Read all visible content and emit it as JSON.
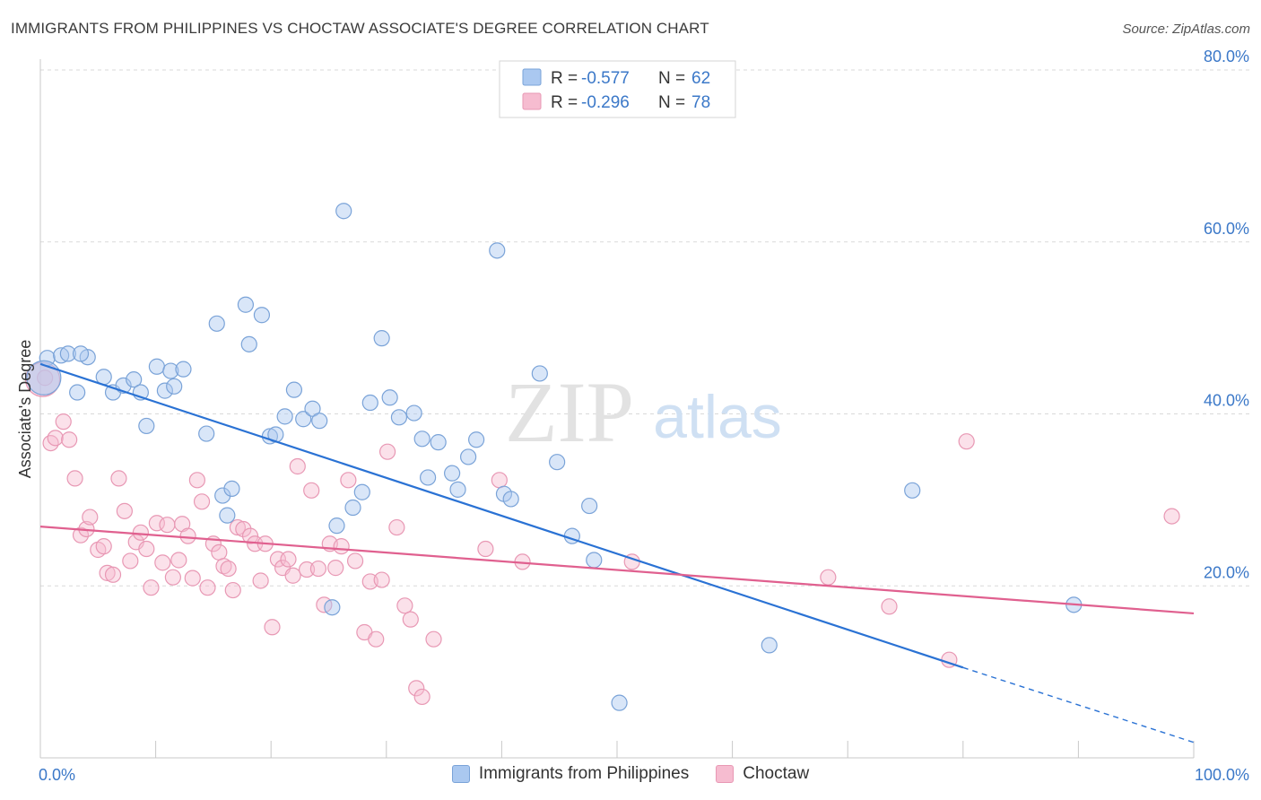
{
  "title": "IMMIGRANTS FROM PHILIPPINES VS CHOCTAW ASSOCIATE'S DEGREE CORRELATION CHART",
  "source": "Source: ZipAtlas.com",
  "watermark": {
    "zip": "ZIP",
    "atlas": "atlas"
  },
  "colors": {
    "blue_fill": "#aac8f0",
    "blue_stroke": "#7aa3d8",
    "blue_line": "#2a72d4",
    "pink_fill": "#f6bcd0",
    "pink_stroke": "#e898b4",
    "pink_line": "#e0608f",
    "tick_label": "#3b78c8",
    "grid": "#d9d9d9"
  },
  "chart_data": {
    "type": "scatter",
    "title": "IMMIGRANTS FROM PHILIPPINES VS CHOCTAW ASSOCIATE'S DEGREE CORRELATION CHART",
    "xlabel": "",
    "ylabel": "Associate's Degree",
    "xlim": [
      0,
      100
    ],
    "ylim": [
      0,
      80
    ],
    "x_tick_labels": {
      "left": "0.0%",
      "right": "100.0%"
    },
    "y_ticks": [
      {
        "value": 20,
        "label": "20.0%"
      },
      {
        "value": 40,
        "label": "40.0%"
      },
      {
        "value": 60,
        "label": "60.0%"
      },
      {
        "value": 80,
        "label": "80.0%"
      }
    ],
    "grid": true,
    "legend_stats": [
      {
        "r_label": "R = ",
        "r_value": "-0.577",
        "n_label": "N = ",
        "n_value": "62"
      },
      {
        "r_label": "R = ",
        "r_value": "-0.296",
        "n_label": "N = ",
        "n_value": "78"
      }
    ],
    "series": [
      {
        "name": "Immigrants from Philippines",
        "color": "#aac8f0",
        "trend": {
          "x": [
            0,
            80,
            100
          ],
          "y": [
            45.8,
            10.5,
            1.8
          ],
          "solid_until": 80
        },
        "points": [
          [
            0.6,
            46.5
          ],
          [
            1.8,
            46.8
          ],
          [
            2.4,
            47
          ],
          [
            3.2,
            42.5
          ],
          [
            4.1,
            46.6
          ],
          [
            3.5,
            47
          ],
          [
            5.5,
            44.3
          ],
          [
            6.3,
            42.5
          ],
          [
            7.2,
            43.3
          ],
          [
            8.1,
            44
          ],
          [
            8.7,
            42.5
          ],
          [
            9.2,
            38.6
          ],
          [
            10.1,
            45.5
          ],
          [
            10.8,
            42.7
          ],
          [
            11.3,
            45
          ],
          [
            11.6,
            43.2
          ],
          [
            12.4,
            45.2
          ],
          [
            14.4,
            37.7
          ],
          [
            15.3,
            50.5
          ],
          [
            15.8,
            30.5
          ],
          [
            16.2,
            28.2
          ],
          [
            16.6,
            31.3
          ],
          [
            17.8,
            52.7
          ],
          [
            18.1,
            48.1
          ],
          [
            19.2,
            51.5
          ],
          [
            19.9,
            37.4
          ],
          [
            20.4,
            37.6
          ],
          [
            21.2,
            39.7
          ],
          [
            22.0,
            42.8
          ],
          [
            22.8,
            39.4
          ],
          [
            23.6,
            40.6
          ],
          [
            24.2,
            39.2
          ],
          [
            25.3,
            17.5
          ],
          [
            25.7,
            27.0
          ],
          [
            26.3,
            63.6
          ],
          [
            27.1,
            29.1
          ],
          [
            27.9,
            30.9
          ],
          [
            28.6,
            41.3
          ],
          [
            29.6,
            48.8
          ],
          [
            30.3,
            41.9
          ],
          [
            31.1,
            39.6
          ],
          [
            32.4,
            40.1
          ],
          [
            33.1,
            37.1
          ],
          [
            33.6,
            32.6
          ],
          [
            34.5,
            36.7
          ],
          [
            35.7,
            33.1
          ],
          [
            36.2,
            31.2
          ],
          [
            37.1,
            35.0
          ],
          [
            37.8,
            37.0
          ],
          [
            39.6,
            59.0
          ],
          [
            40.2,
            30.7
          ],
          [
            40.8,
            30.1
          ],
          [
            43.3,
            44.7
          ],
          [
            44.8,
            34.4
          ],
          [
            46.1,
            25.8
          ],
          [
            47.6,
            29.3
          ],
          [
            48.0,
            23.0
          ],
          [
            50.2,
            6.4
          ],
          [
            63.2,
            13.1
          ],
          [
            75.6,
            31.1
          ],
          [
            89.6,
            17.8
          ],
          [
            0.3,
            44.2
          ]
        ]
      },
      {
        "name": "Choctaw",
        "color": "#f6bcd0",
        "trend": {
          "x": [
            0,
            100
          ],
          "y": [
            26.9,
            16.8
          ],
          "solid_until": 100
        },
        "points": [
          [
            0.4,
            44.2
          ],
          [
            0.9,
            36.6
          ],
          [
            1.3,
            37.2
          ],
          [
            2.0,
            39.1
          ],
          [
            2.5,
            37.0
          ],
          [
            3.0,
            32.5
          ],
          [
            3.5,
            25.9
          ],
          [
            4.0,
            26.6
          ],
          [
            4.3,
            28.0
          ],
          [
            5.0,
            24.2
          ],
          [
            5.5,
            24.6
          ],
          [
            5.8,
            21.5
          ],
          [
            6.3,
            21.3
          ],
          [
            6.8,
            32.5
          ],
          [
            7.3,
            28.7
          ],
          [
            7.8,
            22.9
          ],
          [
            8.3,
            25.1
          ],
          [
            8.7,
            26.2
          ],
          [
            9.2,
            24.3
          ],
          [
            9.6,
            19.8
          ],
          [
            10.1,
            27.3
          ],
          [
            10.6,
            22.7
          ],
          [
            11.0,
            27.1
          ],
          [
            11.5,
            21.0
          ],
          [
            12.0,
            23.0
          ],
          [
            12.3,
            27.2
          ],
          [
            12.8,
            25.8
          ],
          [
            13.2,
            20.9
          ],
          [
            13.6,
            32.3
          ],
          [
            14.0,
            29.8
          ],
          [
            14.5,
            19.8
          ],
          [
            15.0,
            24.9
          ],
          [
            15.5,
            23.9
          ],
          [
            15.9,
            22.3
          ],
          [
            16.3,
            22.0
          ],
          [
            16.7,
            19.5
          ],
          [
            17.1,
            26.8
          ],
          [
            17.6,
            26.6
          ],
          [
            18.2,
            25.8
          ],
          [
            18.6,
            24.9
          ],
          [
            19.1,
            20.6
          ],
          [
            19.5,
            24.9
          ],
          [
            20.1,
            15.2
          ],
          [
            20.6,
            23.1
          ],
          [
            21.0,
            22.1
          ],
          [
            21.5,
            23.1
          ],
          [
            21.9,
            21.2
          ],
          [
            22.3,
            33.9
          ],
          [
            23.1,
            21.9
          ],
          [
            23.5,
            31.1
          ],
          [
            24.1,
            22.0
          ],
          [
            24.6,
            17.8
          ],
          [
            25.1,
            24.9
          ],
          [
            25.6,
            22.1
          ],
          [
            26.1,
            24.6
          ],
          [
            26.7,
            32.3
          ],
          [
            27.3,
            22.9
          ],
          [
            28.1,
            14.6
          ],
          [
            28.6,
            20.5
          ],
          [
            29.1,
            13.8
          ],
          [
            29.6,
            20.7
          ],
          [
            30.1,
            35.6
          ],
          [
            30.9,
            26.8
          ],
          [
            31.6,
            17.7
          ],
          [
            32.1,
            16.1
          ],
          [
            32.6,
            8.1
          ],
          [
            33.1,
            7.1
          ],
          [
            34.1,
            13.8
          ],
          [
            38.6,
            24.3
          ],
          [
            39.8,
            32.3
          ],
          [
            41.8,
            22.8
          ],
          [
            51.3,
            22.8
          ],
          [
            68.3,
            21.0
          ],
          [
            73.6,
            17.6
          ],
          [
            78.8,
            11.4
          ],
          [
            80.3,
            36.8
          ],
          [
            98.1,
            28.1
          ],
          [
            0.2,
            44.0
          ]
        ]
      }
    ]
  }
}
